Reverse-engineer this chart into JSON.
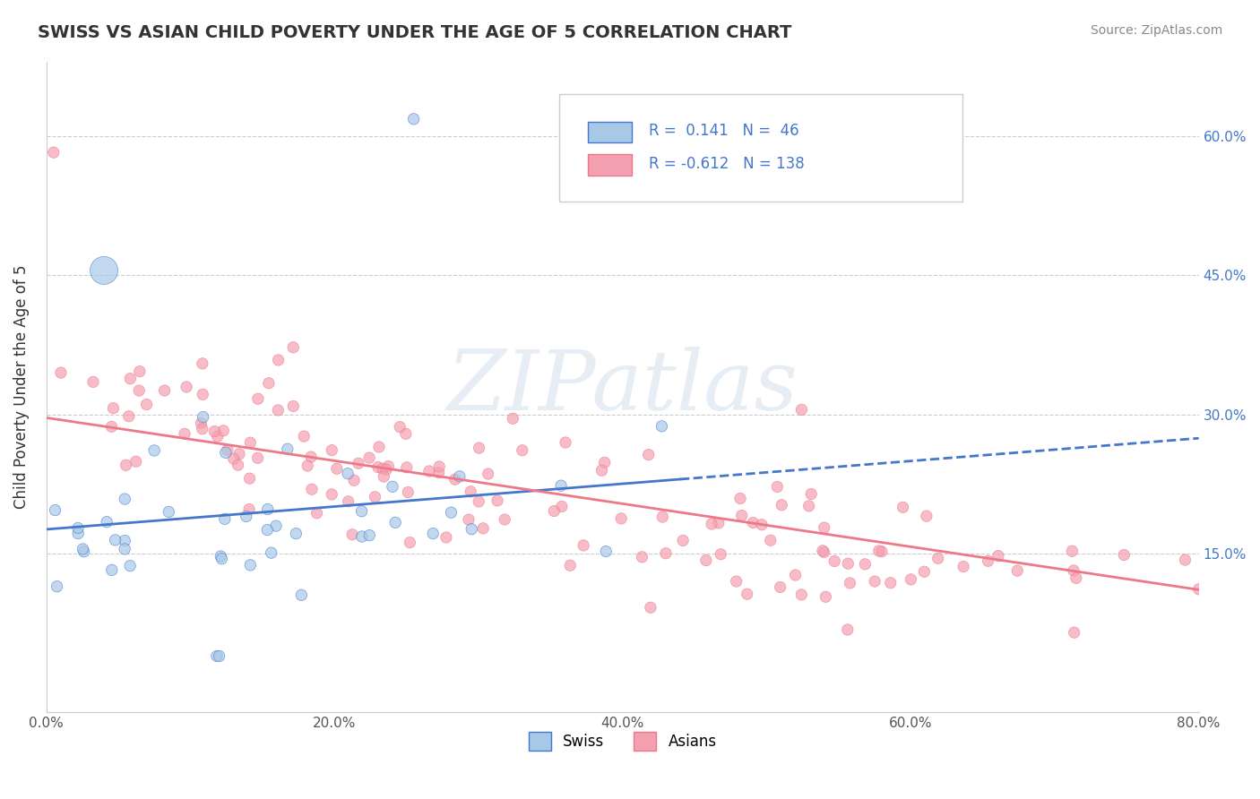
{
  "title": "SWISS VS ASIAN CHILD POVERTY UNDER THE AGE OF 5 CORRELATION CHART",
  "source": "Source: ZipAtlas.com",
  "ylabel": "Child Poverty Under the Age of 5",
  "xlim": [
    0,
    0.8
  ],
  "ylim": [
    -0.02,
    0.68
  ],
  "xtick_vals": [
    0.0,
    0.2,
    0.4,
    0.6,
    0.8
  ],
  "xtick_labels": [
    "0.0%",
    "20.0%",
    "40.0%",
    "60.0%",
    "80.0%"
  ],
  "ytick_vals": [
    0.15,
    0.3,
    0.45,
    0.6
  ],
  "ytick_labels": [
    "15.0%",
    "30.0%",
    "45.0%",
    "60.0%"
  ],
  "swiss_R": 0.141,
  "swiss_N": 46,
  "asian_R": -0.612,
  "asian_N": 138,
  "swiss_color": "#A8C8E8",
  "asian_color": "#F4A0B0",
  "swiss_line_color": "#4477CC",
  "asian_line_color": "#EE7788",
  "background_color": "#FFFFFF",
  "grid_color": "#CCCCCC"
}
